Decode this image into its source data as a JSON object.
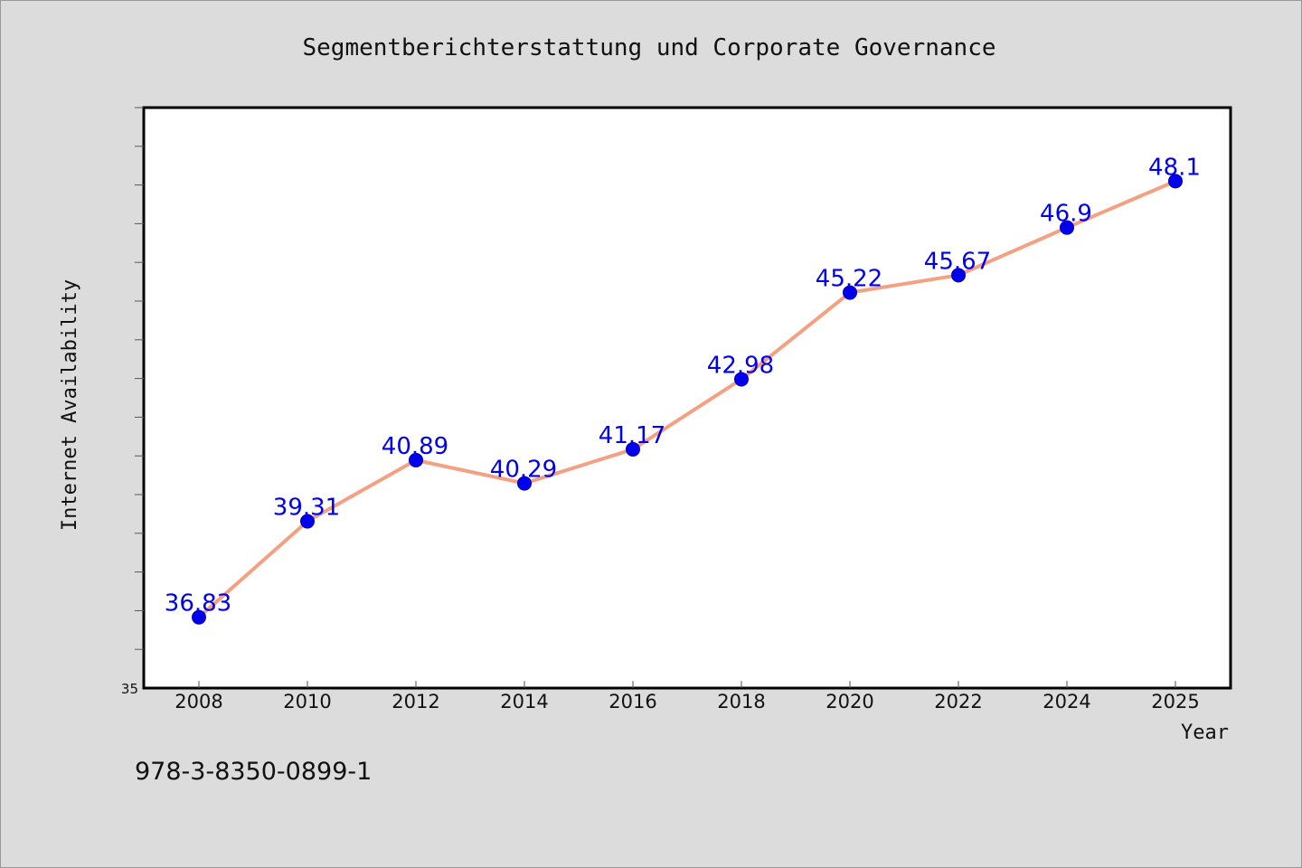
{
  "chart_data": {
    "type": "line",
    "title": "Segmentberichterstattung und Corporate Governance",
    "xlabel": "Year",
    "ylabel": "Internet Availability",
    "categories": [
      "2008",
      "2010",
      "2012",
      "2014",
      "2016",
      "2018",
      "2020",
      "2022",
      "2024",
      "2025"
    ],
    "series": [
      {
        "values": [
          36.83,
          39.31,
          40.89,
          40.29,
          41.17,
          42.98,
          45.22,
          45.67,
          46.9,
          48.1
        ],
        "labels": [
          "36.83",
          "39.31",
          "40.89",
          "40.29",
          "41.17",
          "42.98",
          "45.22",
          "45.67",
          "46.9",
          "48.1"
        ]
      }
    ],
    "ylim": [
      35,
      50
    ],
    "y_tick_labels": [
      "35"
    ],
    "grid": false,
    "line_color": "#f4a082",
    "marker_color": "#0000ee",
    "label_color": "#0000ee"
  },
  "footer": {
    "isbn": "978-3-8350-0899-1"
  }
}
